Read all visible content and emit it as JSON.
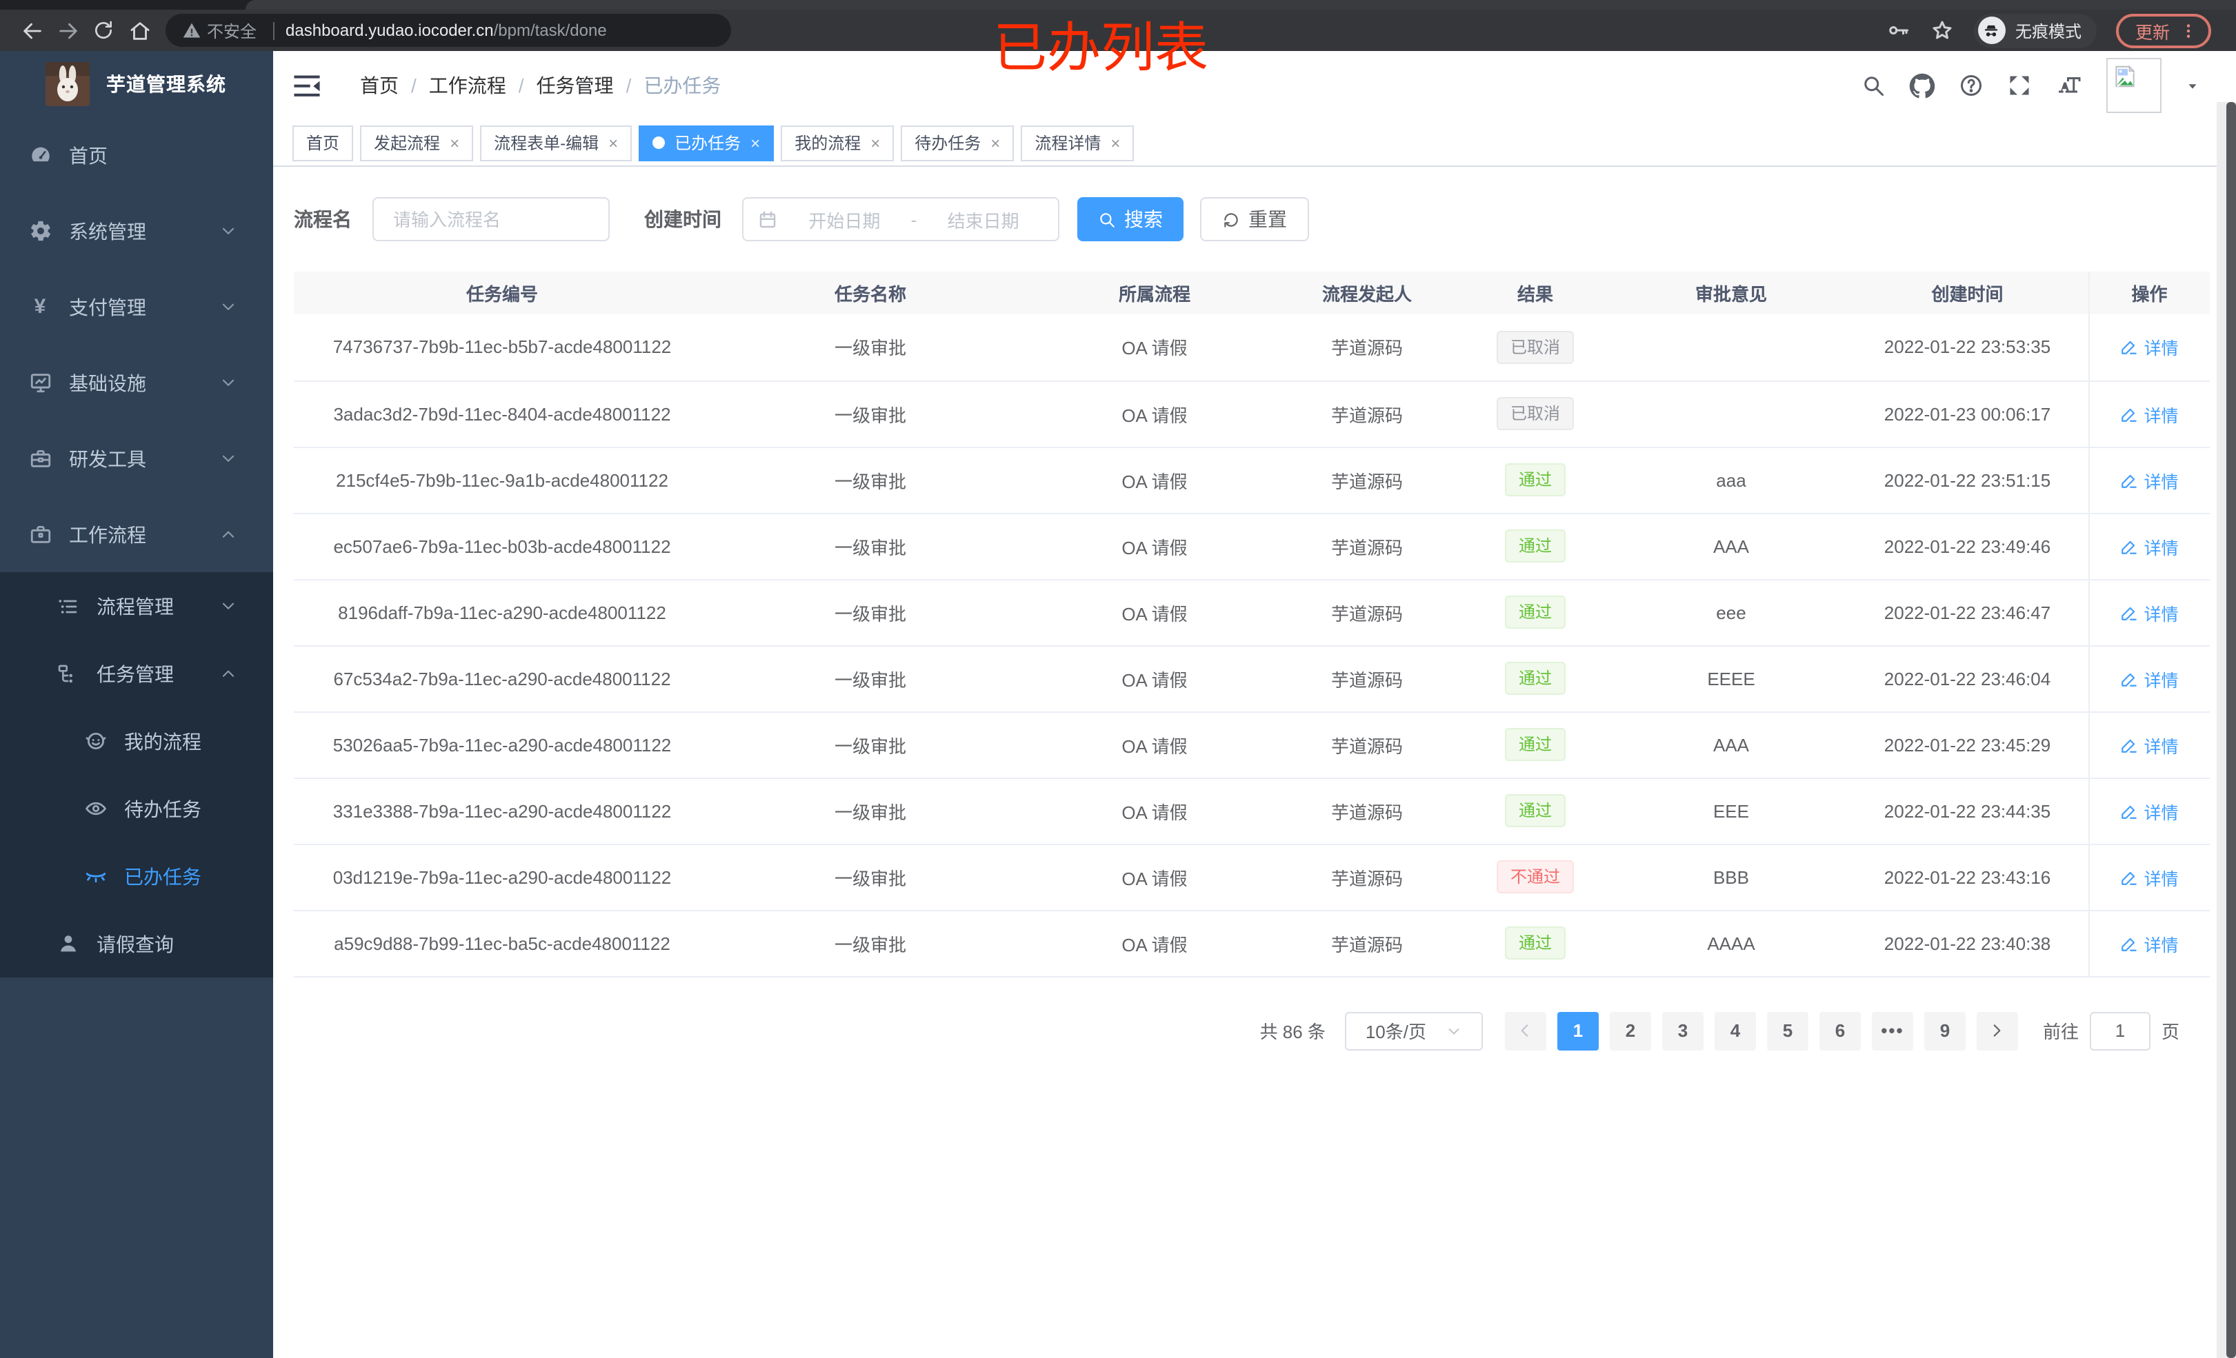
{
  "annotation": "已办列表",
  "browser": {
    "security_label": "不安全",
    "url_host": "dashboard.yudao.iocoder.cn",
    "url_path": "/bpm/task/done",
    "incognito_label": "无痕模式",
    "update_label": "更新"
  },
  "sidebar": {
    "title": "芋道管理系统",
    "menu": [
      {
        "label": "首页",
        "icon": "dashboard-icon",
        "level": 1
      },
      {
        "label": "系统管理",
        "icon": "gear-icon",
        "level": 1,
        "arrow": "down"
      },
      {
        "label": "支付管理",
        "icon": "yen-icon",
        "level": 1,
        "arrow": "down"
      },
      {
        "label": "基础设施",
        "icon": "monitor-icon",
        "level": 1,
        "arrow": "down"
      },
      {
        "label": "研发工具",
        "icon": "toolbox-icon",
        "level": 1,
        "arrow": "down"
      },
      {
        "label": "工作流程",
        "icon": "briefcase-icon",
        "level": 1,
        "arrow": "up"
      },
      {
        "label": "流程管理",
        "icon": "tree-list-icon",
        "level": 2,
        "arrow": "down",
        "dark": true
      },
      {
        "label": "任务管理",
        "icon": "flow-icon",
        "level": 2,
        "arrow": "up",
        "dark": true
      },
      {
        "label": "我的流程",
        "icon": "face-icon",
        "level": 3,
        "dark": true
      },
      {
        "label": "待办任务",
        "icon": "eye-open-icon",
        "level": 3,
        "dark": true
      },
      {
        "label": "已办任务",
        "icon": "eye-closed-icon",
        "level": 3,
        "dark": true,
        "active": true
      },
      {
        "label": "请假查询",
        "icon": "user-icon",
        "level": 2,
        "dark": true
      }
    ]
  },
  "header": {
    "breadcrumb": [
      "首页",
      "工作流程",
      "任务管理",
      "已办任务"
    ]
  },
  "tabs": [
    {
      "label": "首页"
    },
    {
      "label": "发起流程",
      "closable": true
    },
    {
      "label": "流程表单-编辑",
      "closable": true
    },
    {
      "label": "已办任务",
      "closable": true,
      "active": true
    },
    {
      "label": "我的流程",
      "closable": true
    },
    {
      "label": "待办任务",
      "closable": true
    },
    {
      "label": "流程详情",
      "closable": true
    }
  ],
  "filters": {
    "name_label": "流程名",
    "name_placeholder": "请输入流程名",
    "time_label": "创建时间",
    "start_placeholder": "开始日期",
    "range_separator": "-",
    "end_placeholder": "结束日期",
    "search_label": "搜索",
    "reset_label": "重置"
  },
  "table": {
    "columns": [
      "任务编号",
      "任务名称",
      "所属流程",
      "流程发起人",
      "结果",
      "审批意见",
      "创建时间",
      "操作"
    ],
    "action_label": "详情",
    "rows": [
      {
        "id": "74736737-7b9b-11ec-b5b7-acde48001122",
        "name": "一级审批",
        "process": "OA 请假",
        "starter": "芋道源码",
        "result": "已取消",
        "result_type": "info",
        "comment": "",
        "created": "2022-01-22 23:53:35"
      },
      {
        "id": "3adac3d2-7b9d-11ec-8404-acde48001122",
        "name": "一级审批",
        "process": "OA 请假",
        "starter": "芋道源码",
        "result": "已取消",
        "result_type": "info",
        "comment": "",
        "created": "2022-01-23 00:06:17"
      },
      {
        "id": "215cf4e5-7b9b-11ec-9a1b-acde48001122",
        "name": "一级审批",
        "process": "OA 请假",
        "starter": "芋道源码",
        "result": "通过",
        "result_type": "success",
        "comment": "aaa",
        "created": "2022-01-22 23:51:15"
      },
      {
        "id": "ec507ae6-7b9a-11ec-b03b-acde48001122",
        "name": "一级审批",
        "process": "OA 请假",
        "starter": "芋道源码",
        "result": "通过",
        "result_type": "success",
        "comment": "AAA",
        "created": "2022-01-22 23:49:46"
      },
      {
        "id": "8196daff-7b9a-11ec-a290-acde48001122",
        "name": "一级审批",
        "process": "OA 请假",
        "starter": "芋道源码",
        "result": "通过",
        "result_type": "success",
        "comment": "eee",
        "created": "2022-01-22 23:46:47"
      },
      {
        "id": "67c534a2-7b9a-11ec-a290-acde48001122",
        "name": "一级审批",
        "process": "OA 请假",
        "starter": "芋道源码",
        "result": "通过",
        "result_type": "success",
        "comment": "EEEE",
        "created": "2022-01-22 23:46:04"
      },
      {
        "id": "53026aa5-7b9a-11ec-a290-acde48001122",
        "name": "一级审批",
        "process": "OA 请假",
        "starter": "芋道源码",
        "result": "通过",
        "result_type": "success",
        "comment": "AAA",
        "created": "2022-01-22 23:45:29"
      },
      {
        "id": "331e3388-7b9a-11ec-a290-acde48001122",
        "name": "一级审批",
        "process": "OA 请假",
        "starter": "芋道源码",
        "result": "通过",
        "result_type": "success",
        "comment": "EEE",
        "created": "2022-01-22 23:44:35"
      },
      {
        "id": "03d1219e-7b9a-11ec-a290-acde48001122",
        "name": "一级审批",
        "process": "OA 请假",
        "starter": "芋道源码",
        "result": "不通过",
        "result_type": "danger",
        "comment": "BBB",
        "created": "2022-01-22 23:43:16"
      },
      {
        "id": "a59c9d88-7b99-11ec-ba5c-acde48001122",
        "name": "一级审批",
        "process": "OA 请假",
        "starter": "芋道源码",
        "result": "通过",
        "result_type": "success",
        "comment": "AAAA",
        "created": "2022-01-22 23:40:38"
      }
    ]
  },
  "pagination": {
    "total_label": "共 86 条",
    "page_size_label": "10条/页",
    "pages": [
      "1",
      "2",
      "3",
      "4",
      "5",
      "6",
      "•••",
      "9"
    ],
    "active_page": "1",
    "goto_label": "前往",
    "goto_value": "1",
    "page_unit": "页"
  },
  "colors": {
    "accent": "#409eff",
    "success": "#67c23a",
    "danger": "#f56c6c",
    "info": "#909399",
    "sidebar_bg": "#304156",
    "submenu_bg": "#1f2d3d",
    "annotation_red": "#f92c01"
  }
}
